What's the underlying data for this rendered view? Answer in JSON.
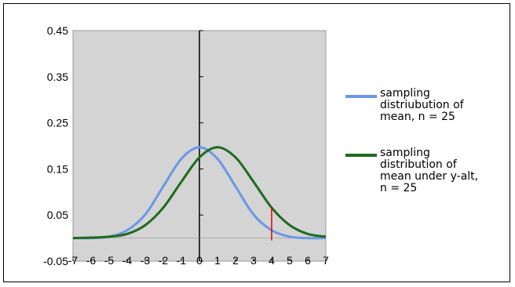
{
  "chart_data": {
    "type": "line",
    "title": "",
    "xlabel": "",
    "ylabel": "",
    "xlim": [
      -7,
      7
    ],
    "ylim": [
      -0.05,
      0.45
    ],
    "y_ticks": [
      "0.45",
      "0.35",
      "0.25",
      "0.15",
      "0.05",
      "-0.05"
    ],
    "x_ticks": [
      "-7",
      "-6",
      "-5",
      "-4",
      "-3",
      "-2",
      "-1",
      "0",
      "1",
      "2",
      "3",
      "4",
      "5",
      "6",
      "7"
    ],
    "grid": false,
    "plot_background": "#d4d4d4",
    "legend_position": "right",
    "series": [
      {
        "name": "sampling\ndistriubution of\nmean, n = 25",
        "color": "#6a98e6",
        "x": [
          -7,
          -6,
          -5,
          -4,
          -3,
          -2,
          -1,
          0,
          1,
          2,
          3,
          4,
          5,
          6,
          7
        ],
        "y": [
          0.0,
          0.0,
          0.003,
          0.017,
          0.051,
          0.112,
          0.172,
          0.197,
          0.172,
          0.112,
          0.051,
          0.017,
          0.003,
          0.0,
          0.0
        ]
      },
      {
        "name": "sampling\ndistribution of\nmean under y-alt,\nn = 25",
        "color": "#1e6b1e",
        "x": [
          -7,
          -6,
          -5,
          -4,
          -3,
          -2,
          -1,
          0,
          1,
          2,
          3,
          4,
          5,
          6,
          7
        ],
        "y": [
          0.0,
          0.001,
          0.003,
          0.009,
          0.028,
          0.066,
          0.122,
          0.175,
          0.197,
          0.175,
          0.122,
          0.066,
          0.028,
          0.009,
          0.003
        ]
      }
    ],
    "annotations": [
      {
        "type": "vertical_line",
        "x": 4,
        "y_from": -0.005,
        "y_to": 0.066,
        "color": "#e00000"
      }
    ]
  }
}
